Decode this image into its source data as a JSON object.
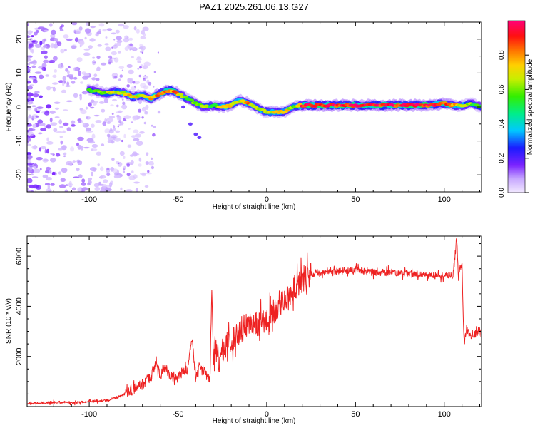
{
  "title": "PAZ1.2025.261.06.13.G27",
  "colors": {
    "snr_line": "#ee2222",
    "frame": "#000000"
  },
  "chart_data": [
    {
      "type": "heatmap",
      "xlabel": "Height of straight line (km)",
      "ylabel": "Frequency (Hz)",
      "xlim": [
        -135,
        121
      ],
      "ylim": [
        -25,
        25
      ],
      "xticks": [
        -100,
        -50,
        0,
        50,
        100
      ],
      "yticks": [
        -20,
        -10,
        0,
        10,
        20
      ],
      "colorbar": {
        "label": "Normalized spectral amplitude",
        "range": [
          0,
          1
        ],
        "ticks": [
          "0.0",
          "0.2",
          "0.4",
          "0.6",
          "0.8"
        ],
        "colormap": "rainbow"
      },
      "ridge": {
        "x": [
          -100,
          -95,
          -90,
          -85,
          -80,
          -75,
          -70,
          -65,
          -60,
          -55,
          -50,
          -45,
          -40,
          -35,
          -30,
          -25,
          -20,
          -15,
          -10,
          -5,
          0,
          5,
          10,
          15,
          20,
          25,
          30,
          40,
          50,
          60,
          70,
          80,
          90,
          100,
          105,
          110,
          115,
          121
        ],
        "frequency": [
          5,
          4.5,
          4,
          4.5,
          4,
          3,
          3.5,
          2.5,
          4,
          5,
          4,
          2.5,
          1,
          0,
          0.5,
          0,
          0.5,
          2,
          1,
          -0.5,
          -1.5,
          -1.5,
          -1.5,
          0,
          0.5,
          0.5,
          0.5,
          0.5,
          0.5,
          0.5,
          0.5,
          0.5,
          0.5,
          1,
          0.5,
          0.5,
          1,
          0
        ],
        "amplitude": [
          0.55,
          0.6,
          0.65,
          0.7,
          0.7,
          0.75,
          0.7,
          0.75,
          0.85,
          0.9,
          0.8,
          0.6,
          0.6,
          0.65,
          0.55,
          0.7,
          0.75,
          0.7,
          0.8,
          0.7,
          0.7,
          0.75,
          0.8,
          0.6,
          0.9,
          0.95,
          0.95,
          0.95,
          0.95,
          0.95,
          0.95,
          0.98,
          0.95,
          0.85,
          0.8,
          0.7,
          0.6,
          0.5
        ]
      },
      "secondary_branch": {
        "x": [
          -47,
          -43,
          -40,
          -38
        ],
        "frequency": [
          0,
          -5,
          -8,
          -9
        ]
      }
    },
    {
      "type": "line",
      "xlabel": "Height of straight line (km)",
      "ylabel": "SNR (10 * v/v)",
      "xlim": [
        -135,
        121
      ],
      "ylim": [
        0,
        6800
      ],
      "xticks": [
        -100,
        -50,
        0,
        50,
        100
      ],
      "yticks": [
        2000,
        4000,
        6000
      ],
      "series": [
        {
          "x": [
            -135,
            -120,
            -110,
            -100,
            -90,
            -85,
            -80,
            -75,
            -70,
            -65,
            -62,
            -60,
            -58,
            -55,
            -50,
            -47,
            -45,
            -42,
            -40,
            -38,
            -35,
            -32,
            -31,
            -30,
            -29,
            -27,
            -25,
            -20,
            -15,
            -10,
            -5,
            0,
            5,
            10,
            15,
            20,
            25,
            30,
            40,
            50,
            60,
            70,
            80,
            90,
            100,
            105,
            107,
            108,
            109,
            110,
            111,
            112,
            115,
            121
          ],
          "values": [
            120,
            180,
            150,
            200,
            250,
            350,
            480,
            700,
            900,
            1200,
            1850,
            1200,
            1600,
            1300,
            1100,
            1500,
            1300,
            2700,
            1200,
            1600,
            1400,
            1000,
            4700,
            1800,
            2400,
            1700,
            2200,
            2700,
            3000,
            3300,
            3300,
            3550,
            3850,
            4300,
            4700,
            5050,
            5250,
            5300,
            5400,
            5450,
            5350,
            5350,
            5300,
            5250,
            5200,
            5250,
            6700,
            5100,
            5600,
            5700,
            2600,
            3100,
            2850,
            3000
          ]
        }
      ]
    }
  ]
}
